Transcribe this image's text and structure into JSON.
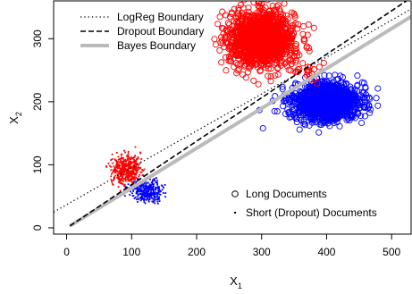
{
  "chart_data": {
    "type": "scatter",
    "xlabel": "X",
    "xlabel_subscript": "1",
    "ylabel": "X",
    "ylabel_subscript": "2",
    "xlim": [
      -20,
      530
    ],
    "ylim": [
      -10,
      360
    ],
    "x_ticks": [
      0,
      100,
      200,
      300,
      400,
      500
    ],
    "y_ticks": [
      0,
      100,
      200,
      300
    ],
    "grid": false,
    "colors": {
      "red": "#ff0000",
      "blue": "#0000ff",
      "bayes": "#bbbbbb",
      "axis": "#000000"
    },
    "lines": [
      {
        "name": "LogReg Boundary",
        "style": "dotted",
        "color": "#000000",
        "points": [
          [
            -20,
            25
          ],
          [
            530,
            347
          ]
        ]
      },
      {
        "name": "Dropout Boundary",
        "style": "dashed",
        "color": "#000000",
        "points": [
          [
            5,
            3
          ],
          [
            530,
            365
          ]
        ]
      },
      {
        "name": "Bayes Boundary",
        "style": "solid-thick",
        "color": "#bbbbbb",
        "points": [
          [
            5,
            3
          ],
          [
            530,
            335
          ]
        ]
      }
    ],
    "clusters": [
      {
        "kind": "long",
        "color": "red",
        "cx": 300,
        "cy": 300,
        "sx": 25,
        "sy": 22,
        "n": 1400
      },
      {
        "kind": "long",
        "color": "blue",
        "cx": 400,
        "cy": 200,
        "sx": 25,
        "sy": 15,
        "n": 1400
      },
      {
        "kind": "long",
        "color": "red",
        "cx": 370,
        "cy": 255,
        "sx": 12,
        "sy": 12,
        "n": 25
      },
      {
        "kind": "short",
        "color": "red",
        "cx": 92,
        "cy": 92,
        "sx": 11,
        "sy": 12,
        "n": 450
      },
      {
        "kind": "short",
        "color": "blue",
        "cx": 125,
        "cy": 58,
        "sx": 12,
        "sy": 8,
        "n": 350
      }
    ],
    "legend_top": [
      {
        "label": "LogReg Boundary",
        "style": "dotted"
      },
      {
        "label": "Dropout Boundary",
        "style": "dashed"
      },
      {
        "label": "Bayes Boundary",
        "style": "solid-thick"
      }
    ],
    "legend_bottom": [
      {
        "label": "Long Documents",
        "symbol": "circle"
      },
      {
        "label": "Short (Dropout) Documents",
        "symbol": "dot"
      }
    ]
  }
}
